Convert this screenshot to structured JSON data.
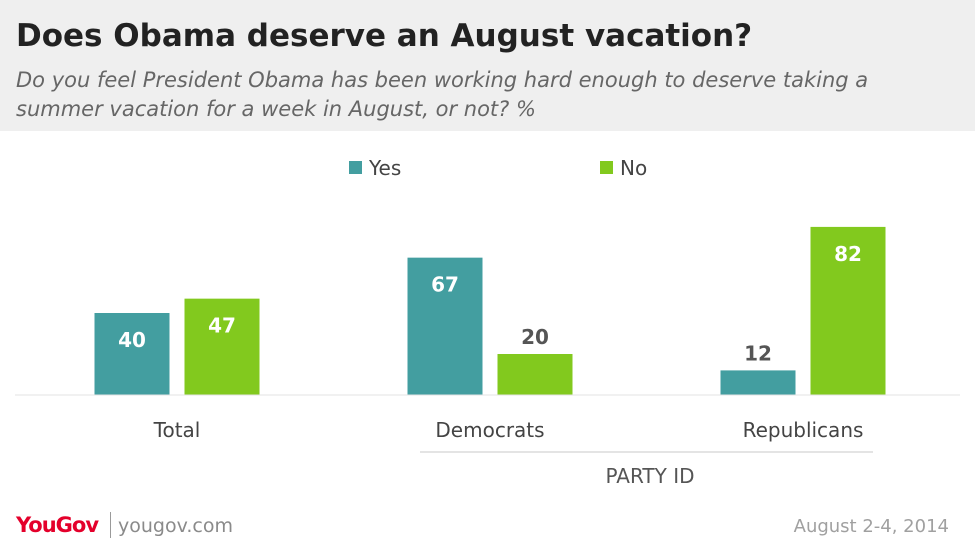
{
  "chart_data": {
    "type": "bar",
    "title": "Does Obama deserve an August vacation?",
    "subtitle": "Do you feel President Obama has been working hard enough to deserve taking a summer vacation for a week in August, or not? %",
    "categories": [
      "Total",
      "Democrats",
      "Republicans"
    ],
    "series": [
      {
        "name": "Yes",
        "values": [
          40,
          67,
          12
        ],
        "color": "#439ea0"
      },
      {
        "name": "No",
        "values": [
          47,
          20,
          82
        ],
        "color": "#82c91e"
      }
    ],
    "group_label": "PARTY ID",
    "ylim": [
      0,
      100
    ],
    "legend_position": "top-center",
    "grid": false
  },
  "footer": {
    "logo": "YouGov",
    "site": "yougov.com",
    "date": "August 2-4, 2014"
  }
}
